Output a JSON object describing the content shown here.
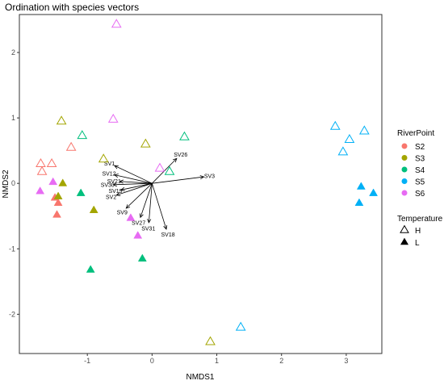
{
  "chart_data": {
    "type": "scatter",
    "title": "Ordination with species vectors",
    "xlabel": "NMDS1",
    "ylabel": "NMDS2",
    "xlim": [
      -2.05,
      3.55
    ],
    "ylim": [
      -2.6,
      2.58
    ],
    "x_ticks": [
      -1,
      0,
      1,
      2,
      3
    ],
    "y_ticks": [
      -2,
      -1,
      0,
      1,
      2
    ],
    "grid": false,
    "legend_position": "right",
    "legends": {
      "color": {
        "title": "RiverPoint",
        "entries": [
          {
            "name": "S2",
            "color": "#F8766D"
          },
          {
            "name": "S3",
            "color": "#A3A500"
          },
          {
            "name": "S4",
            "color": "#00BF7D"
          },
          {
            "name": "S5",
            "color": "#00B0F6"
          },
          {
            "name": "S6",
            "color": "#E76BF3"
          }
        ]
      },
      "shape": {
        "title": "Temperature",
        "entries": [
          {
            "name": "H",
            "shape": "open-triangle"
          },
          {
            "name": "L",
            "shape": "filled-triangle"
          }
        ]
      }
    },
    "points": [
      {
        "x": -0.55,
        "y": 2.43,
        "group": "S6",
        "temp": "H"
      },
      {
        "x": -0.6,
        "y": 0.98,
        "group": "S6",
        "temp": "H"
      },
      {
        "x": 0.12,
        "y": 0.23,
        "group": "S6",
        "temp": "H"
      },
      {
        "x": -1.72,
        "y": 0.3,
        "group": "S2",
        "temp": "H"
      },
      {
        "x": -1.55,
        "y": 0.3,
        "group": "S2",
        "temp": "H"
      },
      {
        "x": -1.7,
        "y": 0.18,
        "group": "S2",
        "temp": "H"
      },
      {
        "x": -1.25,
        "y": 0.55,
        "group": "S2",
        "temp": "H"
      },
      {
        "x": -1.4,
        "y": 0.95,
        "group": "S3",
        "temp": "H"
      },
      {
        "x": -0.75,
        "y": 0.37,
        "group": "S3",
        "temp": "H"
      },
      {
        "x": -0.1,
        "y": 0.6,
        "group": "S3",
        "temp": "H"
      },
      {
        "x": 0.9,
        "y": -2.42,
        "group": "S3",
        "temp": "H"
      },
      {
        "x": -1.08,
        "y": 0.73,
        "group": "S4",
        "temp": "H"
      },
      {
        "x": 0.5,
        "y": 0.71,
        "group": "S4",
        "temp": "H"
      },
      {
        "x": 0.27,
        "y": 0.18,
        "group": "S4",
        "temp": "H"
      },
      {
        "x": 2.83,
        "y": 0.87,
        "group": "S5",
        "temp": "H"
      },
      {
        "x": 3.05,
        "y": 0.67,
        "group": "S5",
        "temp": "H"
      },
      {
        "x": 3.28,
        "y": 0.8,
        "group": "S5",
        "temp": "H"
      },
      {
        "x": 2.95,
        "y": 0.48,
        "group": "S5",
        "temp": "H"
      },
      {
        "x": 1.37,
        "y": -2.2,
        "group": "S5",
        "temp": "H"
      },
      {
        "x": -1.5,
        "y": -0.22,
        "group": "S2",
        "temp": "L"
      },
      {
        "x": -1.45,
        "y": -0.3,
        "group": "S2",
        "temp": "L"
      },
      {
        "x": -1.47,
        "y": -0.48,
        "group": "S2",
        "temp": "L"
      },
      {
        "x": -1.38,
        "y": 0.0,
        "group": "S3",
        "temp": "L"
      },
      {
        "x": -1.45,
        "y": -0.2,
        "group": "S3",
        "temp": "L"
      },
      {
        "x": -0.9,
        "y": -0.41,
        "group": "S3",
        "temp": "L"
      },
      {
        "x": -1.1,
        "y": -0.15,
        "group": "S4",
        "temp": "L"
      },
      {
        "x": -0.95,
        "y": -1.32,
        "group": "S4",
        "temp": "L"
      },
      {
        "x": -0.15,
        "y": -1.15,
        "group": "S4",
        "temp": "L"
      },
      {
        "x": 3.23,
        "y": -0.05,
        "group": "S5",
        "temp": "L"
      },
      {
        "x": 3.42,
        "y": -0.15,
        "group": "S5",
        "temp": "L"
      },
      {
        "x": 3.2,
        "y": -0.3,
        "group": "S5",
        "temp": "L"
      },
      {
        "x": -1.73,
        "y": -0.12,
        "group": "S6",
        "temp": "L"
      },
      {
        "x": -1.53,
        "y": 0.02,
        "group": "S6",
        "temp": "L"
      },
      {
        "x": -0.33,
        "y": -0.53,
        "group": "S6",
        "temp": "L"
      },
      {
        "x": -0.22,
        "y": -0.8,
        "group": "S6",
        "temp": "L"
      }
    ],
    "vectors": [
      {
        "name": "SV1",
        "x": -0.58,
        "y": 0.27
      },
      {
        "name": "SV26",
        "x": 0.38,
        "y": 0.38
      },
      {
        "name": "SV3",
        "x": 0.8,
        "y": 0.1
      },
      {
        "name": "SV12",
        "x": -0.58,
        "y": 0.13
      },
      {
        "name": "SV21",
        "x": -0.5,
        "y": 0.03
      },
      {
        "name": "SV30",
        "x": -0.6,
        "y": -0.02
      },
      {
        "name": "SV19",
        "x": -0.48,
        "y": -0.1
      },
      {
        "name": "SV2",
        "x": -0.55,
        "y": -0.18
      },
      {
        "name": "SV9",
        "x": -0.4,
        "y": -0.38
      },
      {
        "name": "SV27",
        "x": -0.18,
        "y": -0.52
      },
      {
        "name": "SV31",
        "x": -0.05,
        "y": -0.6
      },
      {
        "name": "SV18",
        "x": 0.22,
        "y": -0.7
      }
    ],
    "vector_origin": {
      "x": 0,
      "y": 0
    }
  }
}
